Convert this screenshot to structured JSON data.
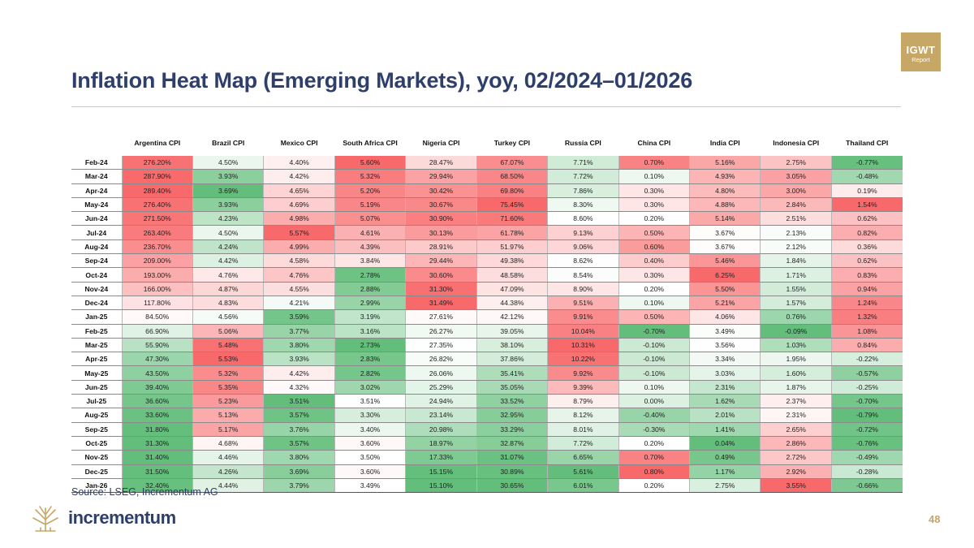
{
  "badge": {
    "title": "IGWT",
    "subtitle": "Report"
  },
  "title": "Inflation Heat Map (Emerging Markets), yoy, 02/2024–01/2026",
  "source": "Source: LSEG, Incrementum AG",
  "brand": "incrementum",
  "page_number": "48",
  "colors": {
    "title": "#2e3f6b",
    "gold": "#c6a766",
    "hot": "#f8696b",
    "mid": "#ffffff",
    "cool": "#63be7b"
  },
  "chart_data": {
    "type": "heatmap",
    "title": "Inflation Heat Map (Emerging Markets), yoy, 02/2024–01/2026",
    "columns": [
      "Argentina CPI",
      "Brazil CPI",
      "Mexico CPI",
      "South Africa CPI",
      "Nigeria CPI",
      "Turkey CPI",
      "Russia CPI",
      "China CPI",
      "India CPI",
      "Indonesia CPI",
      "Thailand CPI"
    ],
    "rows": [
      {
        "date": "Feb-24",
        "values": [
          276.2,
          4.5,
          4.4,
          5.6,
          28.47,
          67.07,
          7.71,
          0.7,
          5.16,
          2.75,
          -0.77
        ]
      },
      {
        "date": "Mar-24",
        "values": [
          287.9,
          3.93,
          4.42,
          5.32,
          29.94,
          68.5,
          7.72,
          0.1,
          4.93,
          3.05,
          -0.48
        ]
      },
      {
        "date": "Apr-24",
        "values": [
          289.4,
          3.69,
          4.65,
          5.2,
          30.42,
          69.8,
          7.86,
          0.3,
          4.8,
          3.0,
          0.19
        ]
      },
      {
        "date": "May-24",
        "values": [
          276.4,
          3.93,
          4.69,
          5.19,
          30.67,
          75.45,
          8.3,
          0.3,
          4.88,
          2.84,
          1.54
        ]
      },
      {
        "date": "Jun-24",
        "values": [
          271.5,
          4.23,
          4.98,
          5.07,
          30.9,
          71.6,
          8.6,
          0.2,
          5.14,
          2.51,
          0.62
        ]
      },
      {
        "date": "Jul-24",
        "values": [
          263.4,
          4.5,
          5.57,
          4.61,
          30.13,
          61.78,
          9.13,
          0.5,
          3.67,
          2.13,
          0.82
        ]
      },
      {
        "date": "Aug-24",
        "values": [
          236.7,
          4.24,
          4.99,
          4.39,
          28.91,
          51.97,
          9.06,
          0.6,
          3.67,
          2.12,
          0.36
        ]
      },
      {
        "date": "Sep-24",
        "values": [
          209.0,
          4.42,
          4.58,
          3.84,
          29.44,
          49.38,
          8.62,
          0.4,
          5.46,
          1.84,
          0.62
        ]
      },
      {
        "date": "Oct-24",
        "values": [
          193.0,
          4.76,
          4.76,
          2.78,
          30.6,
          48.58,
          8.54,
          0.3,
          6.25,
          1.71,
          0.83
        ]
      },
      {
        "date": "Nov-24",
        "values": [
          166.0,
          4.87,
          4.55,
          2.88,
          31.3,
          47.09,
          8.9,
          0.2,
          5.5,
          1.55,
          0.94
        ]
      },
      {
        "date": "Dec-24",
        "values": [
          117.8,
          4.83,
          4.21,
          2.99,
          31.49,
          44.38,
          9.51,
          0.1,
          5.21,
          1.57,
          1.24
        ]
      },
      {
        "date": "Jan-25",
        "values": [
          84.5,
          4.56,
          3.59,
          3.19,
          27.61,
          42.12,
          9.91,
          0.5,
          4.06,
          0.76,
          1.32
        ]
      },
      {
        "date": "Feb-25",
        "values": [
          66.9,
          5.06,
          3.77,
          3.16,
          26.27,
          39.05,
          10.04,
          -0.7,
          3.49,
          -0.09,
          1.08
        ]
      },
      {
        "date": "Mar-25",
        "values": [
          55.9,
          5.48,
          3.8,
          2.73,
          27.35,
          38.1,
          10.31,
          -0.1,
          3.56,
          1.03,
          0.84
        ]
      },
      {
        "date": "Apr-25",
        "values": [
          47.3,
          5.53,
          3.93,
          2.83,
          26.82,
          37.86,
          10.22,
          -0.1,
          3.34,
          1.95,
          -0.22
        ]
      },
      {
        "date": "May-25",
        "values": [
          43.5,
          5.32,
          4.42,
          2.82,
          26.06,
          35.41,
          9.92,
          -0.1,
          3.03,
          1.6,
          -0.57
        ]
      },
      {
        "date": "Jun-25",
        "values": [
          39.4,
          5.35,
          4.32,
          3.02,
          25.29,
          35.05,
          9.39,
          0.1,
          2.31,
          1.87,
          -0.25
        ]
      },
      {
        "date": "Jul-25",
        "values": [
          36.6,
          5.23,
          3.51,
          3.51,
          24.94,
          33.52,
          8.79,
          0.0,
          1.62,
          2.37,
          -0.7
        ]
      },
      {
        "date": "Aug-25",
        "values": [
          33.6,
          5.13,
          3.57,
          3.3,
          23.14,
          32.95,
          8.12,
          -0.4,
          2.01,
          2.31,
          -0.79
        ]
      },
      {
        "date": "Sep-25",
        "values": [
          31.8,
          5.17,
          3.76,
          3.4,
          20.98,
          33.29,
          8.01,
          -0.3,
          1.41,
          2.65,
          -0.72
        ]
      },
      {
        "date": "Oct-25",
        "values": [
          31.3,
          4.68,
          3.57,
          3.6,
          18.97,
          32.87,
          7.72,
          0.2,
          0.04,
          2.86,
          -0.76
        ]
      },
      {
        "date": "Nov-25",
        "values": [
          31.4,
          4.46,
          3.8,
          3.5,
          17.33,
          31.07,
          6.65,
          0.7,
          0.49,
          2.72,
          -0.49
        ]
      },
      {
        "date": "Dec-25",
        "values": [
          31.5,
          4.26,
          3.69,
          3.6,
          15.15,
          30.89,
          5.61,
          0.8,
          1.17,
          2.92,
          -0.28
        ]
      },
      {
        "date": "Jan-26",
        "values": [
          32.4,
          4.44,
          3.79,
          3.49,
          15.1,
          30.65,
          6.01,
          0.2,
          2.75,
          3.55,
          -0.66
        ]
      }
    ],
    "value_format": "percent_2dp",
    "color_scale": "per-column red (high) – white (mid) – green (low)"
  }
}
